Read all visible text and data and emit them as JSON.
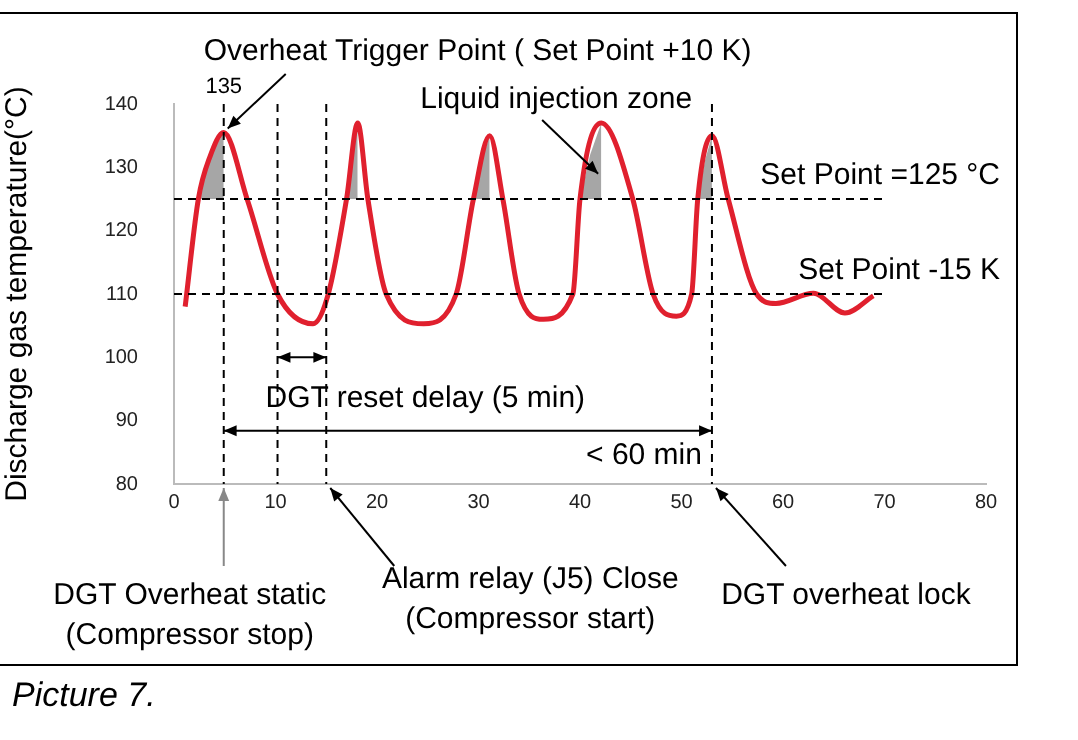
{
  "chart_data": {
    "type": "line",
    "ylabel": "Discharge gas temperature(°C)",
    "xlim": [
      0,
      80
    ],
    "xticks": [
      0,
      10,
      20,
      30,
      40,
      50,
      60,
      70,
      80
    ],
    "ylim": [
      80,
      140
    ],
    "yticks": [
      80,
      90,
      100,
      110,
      120,
      130,
      140
    ],
    "legend": false,
    "marker": "none",
    "line_style": "solid",
    "series": [
      {
        "color": "#e0202e",
        "x": [
          1.1,
          2.4,
          3.5,
          4.9,
          7.2,
          10.2,
          13.7,
          15.2,
          17,
          18.1,
          19.1,
          20.9,
          24.6,
          27.8,
          29.5,
          31.1,
          32.4,
          34,
          36.4,
          39.3,
          40,
          42.1,
          45.2,
          47.2,
          49.5,
          51,
          51.6,
          53,
          54.6,
          57.4,
          59.3,
          63,
          66.1,
          68.9
        ],
        "values": [
          108,
          125,
          131.5,
          135.5,
          125,
          110,
          105.3,
          110,
          125,
          137,
          125,
          110,
          105.3,
          110,
          125,
          135,
          125,
          110,
          106,
          110,
          125,
          137,
          125,
          110,
          106.5,
          110,
          125,
          135,
          125,
          110,
          108.5,
          110.1,
          107,
          109.7
        ]
      },
      {
        "type": "area",
        "color": "#a6a6a6",
        "x": [
          2.4,
          3.5,
          4.9,
          5,
          17,
          17.6,
          18.1,
          18.2,
          29.5,
          30.3,
          31.1,
          31.2,
          40,
          41,
          42.1,
          42.2,
          51.6,
          52.3,
          53
        ],
        "values": [
          125,
          131.5,
          135.5,
          null,
          125,
          132,
          137,
          null,
          125,
          131,
          135,
          null,
          125,
          132,
          137,
          null,
          125,
          131,
          135
        ]
      }
    ],
    "ref_lines": [
      {
        "axis": "y",
        "value": 125,
        "label": "Set Point =125 °C",
        "color": "#000000",
        "line_style": "dashed"
      },
      {
        "axis": "y",
        "value": 110,
        "label": "Set Point -15 K",
        "color": "#000000",
        "line_style": "dashed"
      },
      {
        "axis": "x",
        "value": 4.9,
        "color": "#000000",
        "line_style": "dashed"
      },
      {
        "axis": "x",
        "value": 10.2,
        "color": "#000000",
        "line_style": "dashed"
      },
      {
        "axis": "x",
        "value": 15,
        "color": "#000000",
        "line_style": "dashed"
      },
      {
        "axis": "x",
        "value": 53,
        "color": "#000000",
        "line_style": "dashed"
      }
    ],
    "annotations": [
      "Overheat Trigger Point ( Set Point +10 K)",
      {
        "text": "135",
        "x": 4.9,
        "y": 135.5
      },
      {
        "text": "Liquid injection zone",
        "x": 41,
        "y": 129
      },
      "DGT reset delay (5 min)",
      "< 60 min",
      "DGT Overheat static\n(Compressor stop)",
      "Alarm relay (J5) Close\n(Compressor start)",
      "DGT overheat lock",
      "Picture 7."
    ]
  }
}
